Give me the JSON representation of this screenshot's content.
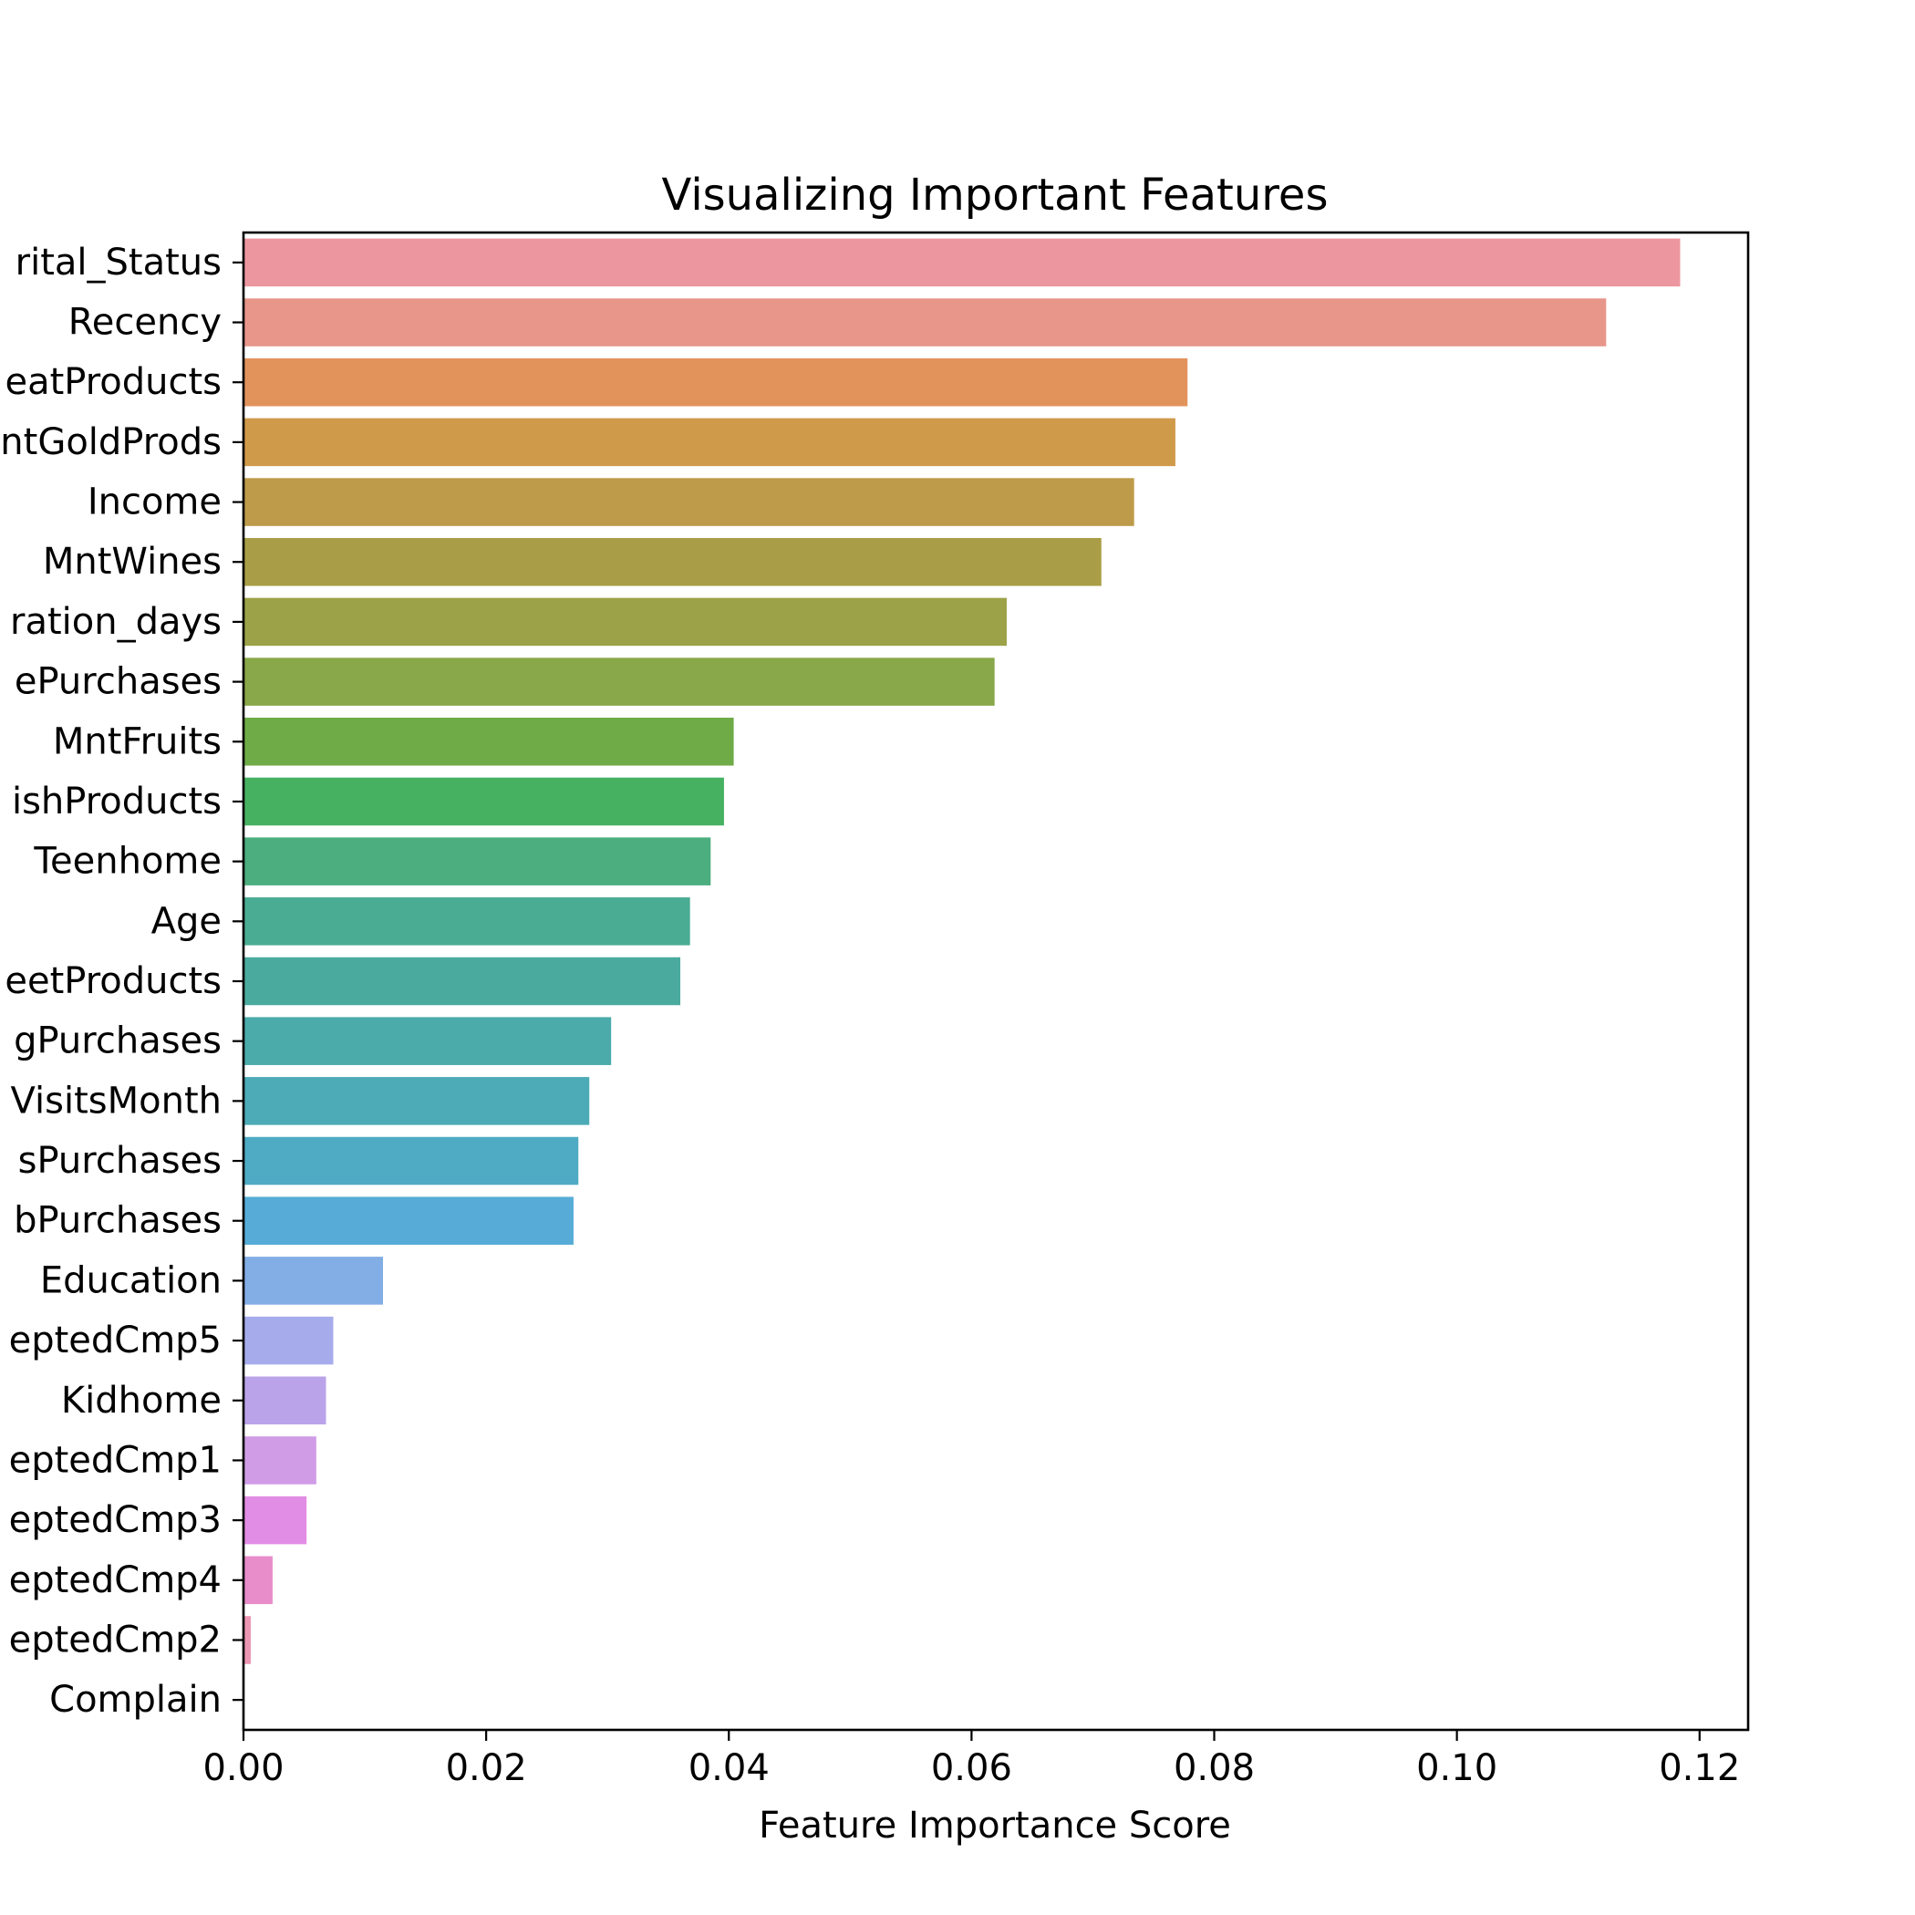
{
  "chart_data": {
    "type": "bar",
    "orientation": "horizontal",
    "title": "Visualizing Important Features",
    "xlabel": "Feature Importance Score",
    "ylabel": "",
    "xlim": [
      0,
      0.124
    ],
    "xticks": [
      "0.00",
      "0.02",
      "0.04",
      "0.06",
      "0.08",
      "0.10",
      "0.12"
    ],
    "xtick_values": [
      0,
      0.02,
      0.04,
      0.06,
      0.08,
      0.1,
      0.12
    ],
    "grid": false,
    "categories": [
      "rital_Status",
      "Recency",
      "eatProducts",
      "ntGoldProds",
      "Income",
      "MntWines",
      "ration_days",
      "ePurchases",
      "MntFruits",
      "ishProducts",
      "Teenhome",
      "Age",
      "eetProducts",
      "gPurchases",
      "VisitsMonth",
      "sPurchases",
      "bPurchases",
      "Education",
      "eptedCmp5",
      "Kidhome",
      "eptedCmp1",
      "eptedCmp3",
      "eptedCmp4",
      "eptedCmp2",
      "Complain"
    ],
    "values": [
      0.1184,
      0.1123,
      0.0778,
      0.0768,
      0.0734,
      0.0707,
      0.0629,
      0.0619,
      0.0404,
      0.0396,
      0.0385,
      0.0368,
      0.036,
      0.0303,
      0.0285,
      0.0276,
      0.0272,
      0.0115,
      0.0074,
      0.0068,
      0.006,
      0.0052,
      0.0024,
      0.0006,
      0.0
    ],
    "colors": [
      "#ec96a0",
      "#e8968a",
      "#e2935c",
      "#d09a4b",
      "#bd9b4a",
      "#a99e47",
      "#9ca247",
      "#89a84a",
      "#6fac48",
      "#47b162",
      "#4cad7e",
      "#4aac93",
      "#4aaa9e",
      "#4aabaa",
      "#4cabb6",
      "#4fabc4",
      "#56acd6",
      "#82aee5",
      "#a6aceb",
      "#bba3ea",
      "#d19ce6",
      "#e28de5",
      "#e98dca",
      "#ec95b4",
      "#ee98ac"
    ]
  }
}
